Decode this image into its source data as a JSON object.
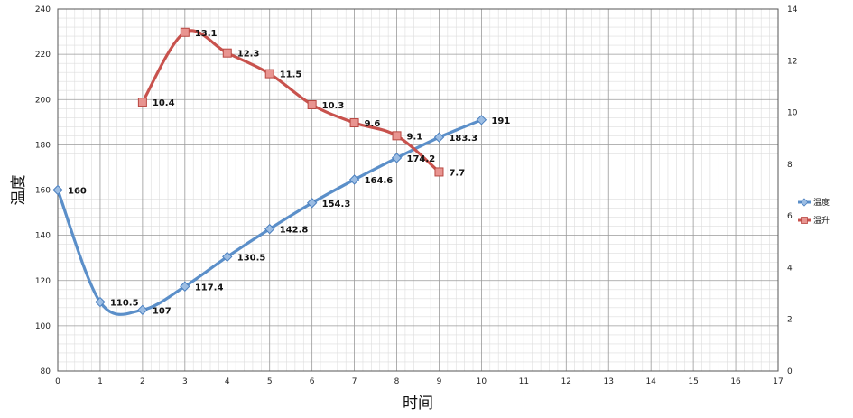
{
  "chart_data": {
    "type": "line",
    "xlabel": "时间",
    "ylabel": "温度",
    "xlim": [
      0,
      17
    ],
    "ylim": [
      80,
      240
    ],
    "y2lim": [
      0,
      14
    ],
    "x_ticks": [
      "0",
      "1",
      "2",
      "3",
      "4",
      "5",
      "6",
      "7",
      "8",
      "9",
      "10",
      "11",
      "12",
      "13",
      "14",
      "15",
      "16",
      "17"
    ],
    "y_ticks": [
      "80",
      "100",
      "120",
      "140",
      "160",
      "180",
      "200",
      "220",
      "240"
    ],
    "y2_ticks": [
      "0",
      "2",
      "4",
      "6",
      "8",
      "10",
      "12",
      "14"
    ],
    "grid": true,
    "legend_position": "right",
    "series": [
      {
        "name": "温度",
        "axis": "left",
        "color": "#5b8fc9",
        "marker": "diamond",
        "x": [
          0,
          1,
          2,
          3,
          4,
          5,
          6,
          7,
          8,
          9,
          10
        ],
        "values": [
          160,
          110.5,
          107,
          117.4,
          130.5,
          142.8,
          154.3,
          164.6,
          174.2,
          183.3,
          191
        ],
        "labels": [
          "160",
          "110.5",
          "107",
          "117.4",
          "130.5",
          "142.8",
          "154.3",
          "164.6",
          "174.2",
          "183.3",
          "191"
        ]
      },
      {
        "name": "温升",
        "axis": "right",
        "color": "#c8524d",
        "marker": "square",
        "x": [
          2,
          3,
          4,
          5,
          6,
          7,
          8,
          9
        ],
        "values": [
          10.4,
          13.1,
          12.3,
          11.5,
          10.3,
          9.6,
          9.1,
          7.7
        ],
        "labels": [
          "10.4",
          "13.1",
          "12.3",
          "11.5",
          "10.3",
          "9.6",
          "9.1",
          "7.7"
        ]
      }
    ]
  }
}
